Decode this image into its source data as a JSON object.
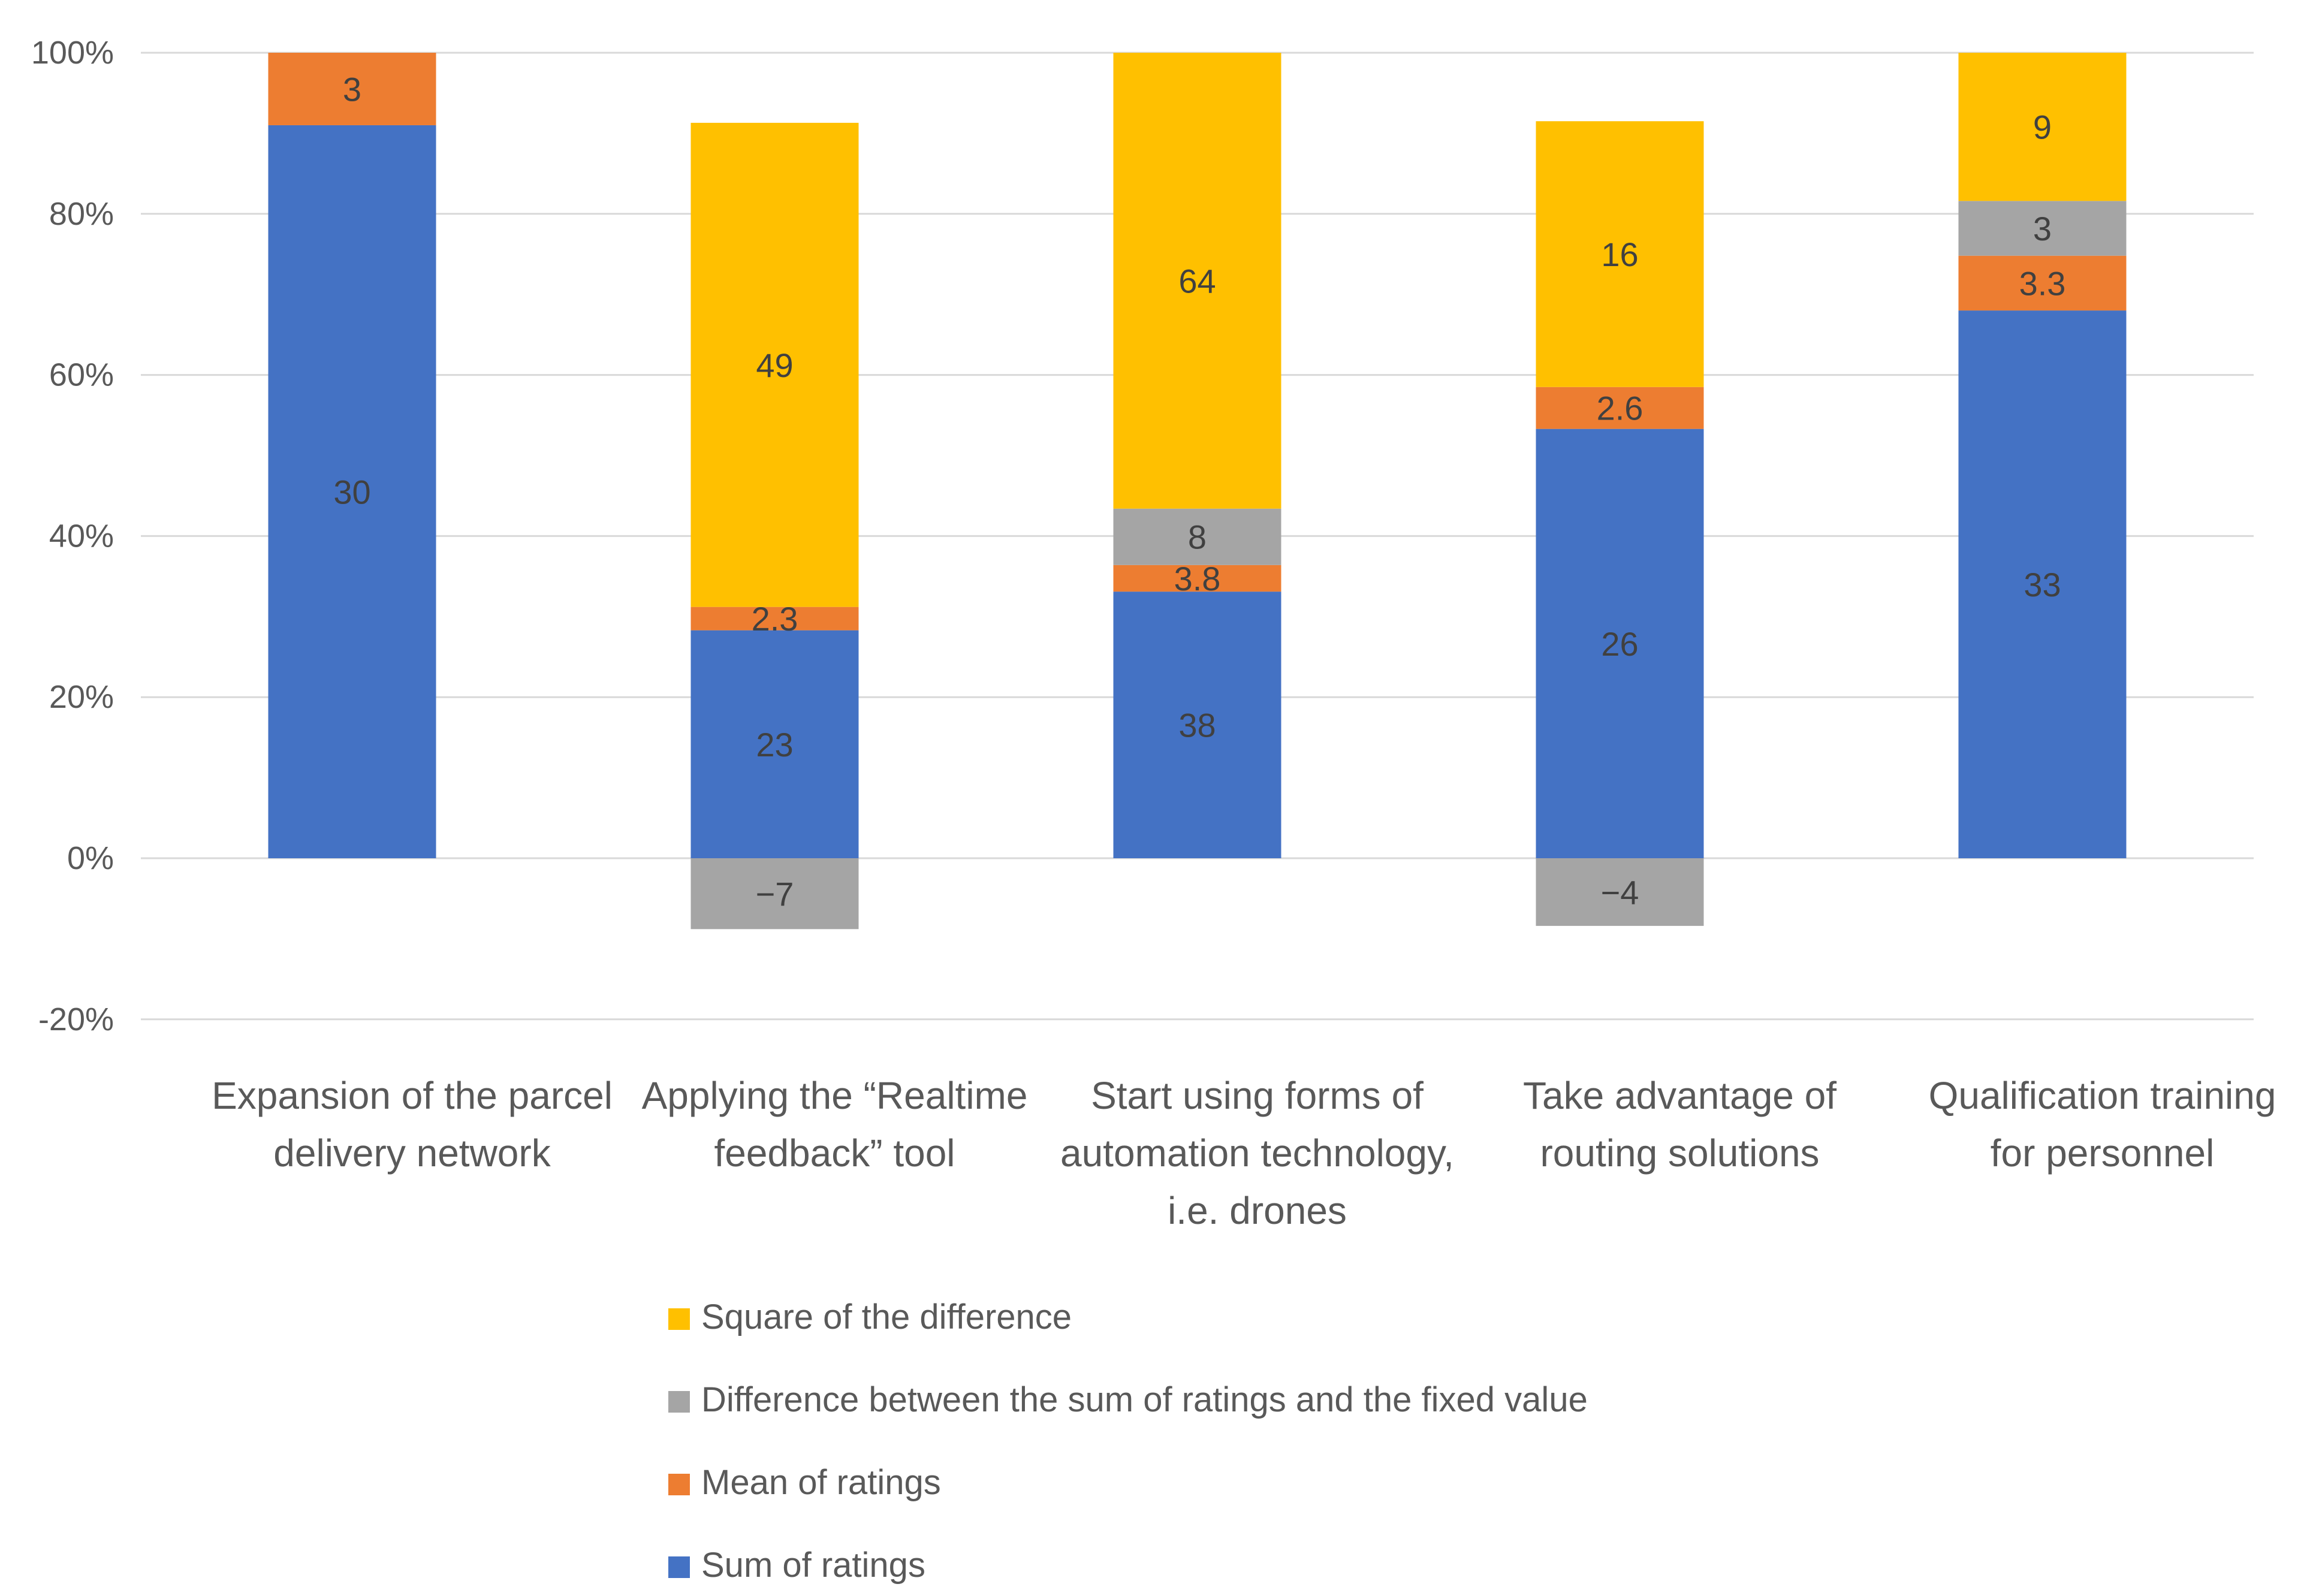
{
  "chart_data": {
    "type": "bar",
    "stacked": "percent",
    "title": "",
    "xlabel": "",
    "ylabel": "",
    "ylim": [
      -20,
      100
    ],
    "yticks": [
      "100%",
      "80%",
      "60%",
      "40%",
      "20%",
      "0%",
      "-20%"
    ],
    "ytick_values": [
      100,
      80,
      60,
      40,
      20,
      0,
      -20
    ],
    "grid": true,
    "legend_position": "bottom",
    "categories": [
      [
        "Expansion of the parcel",
        "delivery network"
      ],
      [
        "Applying the “Realtime",
        "feedback” tool"
      ],
      [
        "Start using forms of",
        "automation technology,",
        "i.e. drones"
      ],
      [
        "Take advantage of",
        "routing solutions"
      ],
      [
        "Qualification training",
        "for personnel"
      ]
    ],
    "series": [
      {
        "name": "Sum of ratings",
        "color": "#4472C4",
        "label_color": "#404040",
        "labels": [
          "30",
          "23",
          "38",
          "26",
          "33"
        ],
        "percent": [
          91,
          28.3,
          33.1,
          53.3,
          68
        ]
      },
      {
        "name": "Mean of ratings",
        "color": "#ED7D31",
        "label_color": "#404040",
        "labels": [
          "3",
          "2.3",
          "3.8",
          "2.6",
          "3.3"
        ],
        "percent": [
          9,
          2.9,
          3.3,
          5.2,
          6.8
        ]
      },
      {
        "name": "Difference between the sum of ratings and the fixed value",
        "color": "#A5A5A5",
        "label_color": "#404040",
        "labels": [
          "",
          "−7",
          "8",
          "−4",
          "3"
        ],
        "percent": [
          0,
          -8.8,
          7,
          -8.4,
          6.8
        ]
      },
      {
        "name": "Square of the difference",
        "color": "#FFC000",
        "label_color": "#404040",
        "labels": [
          "",
          "49",
          "64",
          "16",
          "9"
        ],
        "percent": [
          0,
          60.1,
          56.6,
          33,
          18.4
        ]
      }
    ],
    "legend_order": [
      "Square of the difference",
      "Difference between the sum of ratings and the fixed value",
      "Mean of ratings",
      "Sum of ratings"
    ]
  }
}
